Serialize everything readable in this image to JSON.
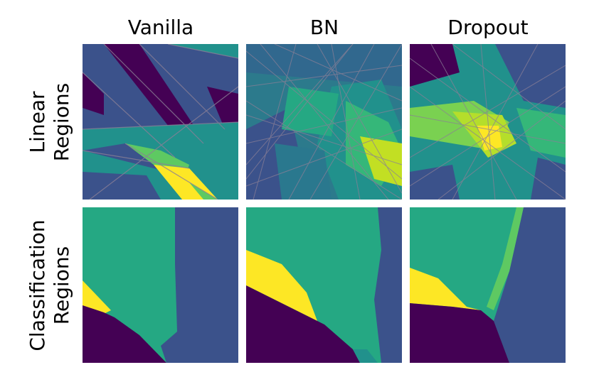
{
  "columns": [
    "Vanilla",
    "BN",
    "Dropout"
  ],
  "rows": [
    {
      "label_line1": "Linear",
      "label_line2": "Regions"
    },
    {
      "label_line1": "Classification",
      "label_line2": "Regions"
    }
  ],
  "colors": {
    "dark_purple": "#440154",
    "blue": "#3b528b",
    "teal": "#21918c",
    "green": "#25a883",
    "light_green": "#5ec962",
    "yellow": "#fde725",
    "boundary_gray": "#8a7f96"
  }
}
